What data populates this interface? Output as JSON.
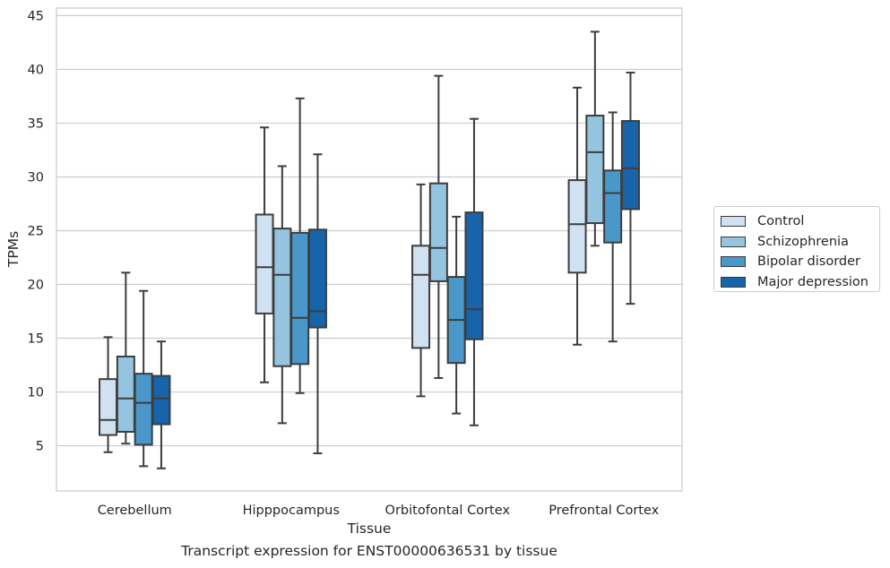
{
  "chart_data": {
    "type": "box",
    "xlabel": "Tissue",
    "ylabel": "TPMs",
    "ylim": [
      0.8,
      45.7
    ],
    "yticks": [
      5,
      10,
      15,
      20,
      25,
      30,
      35,
      40,
      45
    ],
    "grid": true,
    "legend_position": "right",
    "categories": [
      "Cerebellum",
      "Hipppocampus",
      "Orbitofontal Cortex",
      "Prefrontal Cortex"
    ],
    "series": [
      {
        "name": "Control",
        "color": "#d0e1f2",
        "boxes": [
          {
            "whisker_low": 4.4,
            "q1": 6.0,
            "median": 7.4,
            "q3": 11.2,
            "whisker_high": 15.1
          },
          {
            "whisker_low": 10.9,
            "q1": 17.3,
            "median": 21.6,
            "q3": 26.5,
            "whisker_high": 34.6
          },
          {
            "whisker_low": 9.6,
            "q1": 14.1,
            "median": 20.9,
            "q3": 23.6,
            "whisker_high": 29.3
          },
          {
            "whisker_low": 14.4,
            "q1": 21.1,
            "median": 25.6,
            "q3": 29.7,
            "whisker_high": 38.3
          }
        ]
      },
      {
        "name": "Schizophrenia",
        "color": "#94c4df",
        "boxes": [
          {
            "whisker_low": 5.2,
            "q1": 6.3,
            "median": 9.4,
            "q3": 13.3,
            "whisker_high": 21.1
          },
          {
            "whisker_low": 7.1,
            "q1": 12.4,
            "median": 20.9,
            "q3": 25.2,
            "whisker_high": 31.0
          },
          {
            "whisker_low": 11.3,
            "q1": 20.3,
            "median": 23.4,
            "q3": 29.4,
            "whisker_high": 39.4
          },
          {
            "whisker_low": 23.6,
            "q1": 25.7,
            "median": 32.3,
            "q3": 35.7,
            "whisker_high": 43.5
          }
        ]
      },
      {
        "name": "Bipolar disorder",
        "color": "#4a98c9",
        "boxes": [
          {
            "whisker_low": 3.1,
            "q1": 5.1,
            "median": 9.0,
            "q3": 11.7,
            "whisker_high": 19.4
          },
          {
            "whisker_low": 9.9,
            "q1": 12.6,
            "median": 16.9,
            "q3": 24.8,
            "whisker_high": 37.3
          },
          {
            "whisker_low": 8.0,
            "q1": 12.7,
            "median": 16.7,
            "q3": 20.7,
            "whisker_high": 26.3
          },
          {
            "whisker_low": 14.7,
            "q1": 23.9,
            "median": 28.5,
            "q3": 30.6,
            "whisker_high": 36.0
          }
        ]
      },
      {
        "name": "Major depression",
        "color": "#1764ab",
        "boxes": [
          {
            "whisker_low": 2.9,
            "q1": 7.0,
            "median": 9.4,
            "q3": 11.5,
            "whisker_high": 14.7
          },
          {
            "whisker_low": 4.3,
            "q1": 16.0,
            "median": 17.5,
            "q3": 25.1,
            "whisker_high": 32.1
          },
          {
            "whisker_low": 6.9,
            "q1": 14.9,
            "median": 17.7,
            "q3": 26.7,
            "whisker_high": 35.4
          },
          {
            "whisker_low": 18.2,
            "q1": 27.0,
            "median": 30.8,
            "q3": 35.2,
            "whisker_high": 39.7
          }
        ]
      }
    ]
  },
  "caption": "Transcript expression for ENST00000636531 by tissue"
}
